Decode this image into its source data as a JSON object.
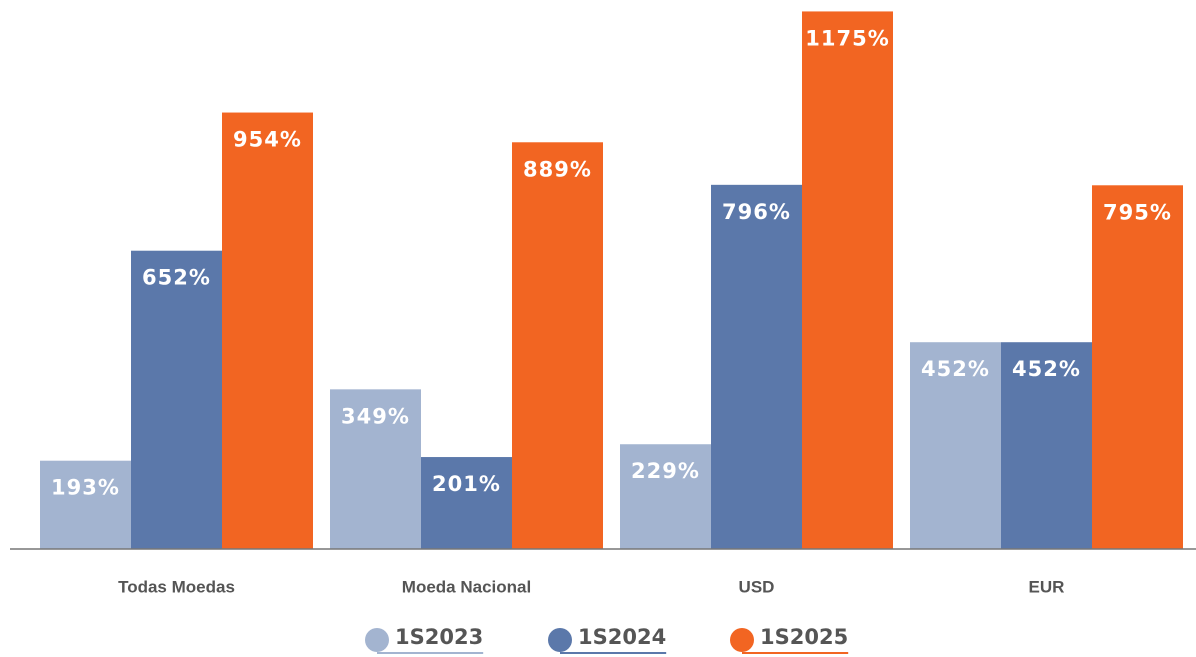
{
  "chart_data": {
    "type": "bar",
    "categories": [
      "Todas Moedas",
      "Moeda Nacional",
      "USD",
      "EUR"
    ],
    "series": [
      {
        "name": "1S2023",
        "color": "#a3b4d0",
        "values": [
          193,
          349,
          229,
          452
        ],
        "value_labels": [
          "193%",
          "349%",
          "229%",
          "452%"
        ]
      },
      {
        "name": "1S2024",
        "color": "#5b78aa",
        "values": [
          652,
          201,
          796,
          452
        ],
        "value_labels": [
          "652%",
          "201%",
          "796%",
          "452%"
        ]
      },
      {
        "name": "1S2025",
        "color": "#f26522",
        "values": [
          954,
          889,
          1175,
          795
        ],
        "value_labels": [
          "954%",
          "889%",
          "1175%",
          "795%"
        ]
      }
    ],
    "ylim": [
      0,
      1200
    ]
  }
}
